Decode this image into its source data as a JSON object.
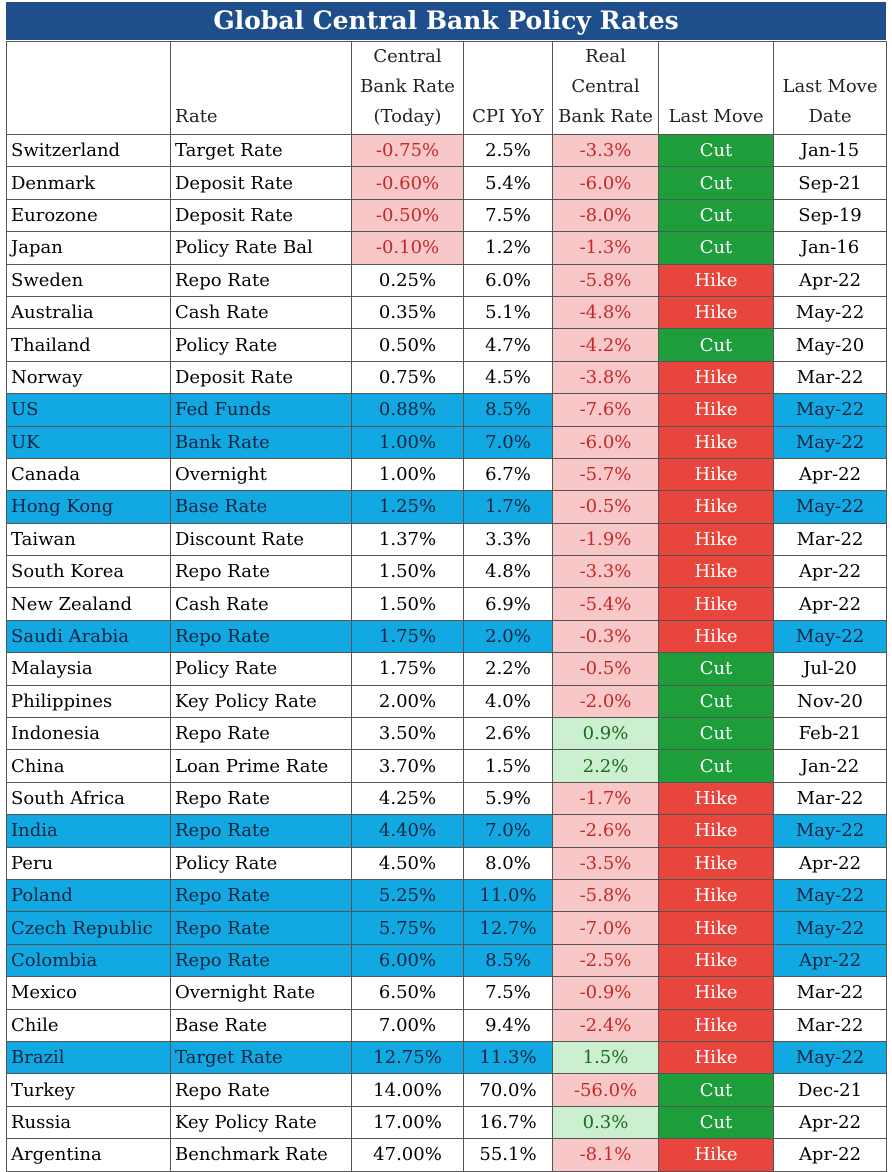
{
  "title": "Global Central Bank Policy Rates",
  "headers": {
    "country": "",
    "rate": "Rate",
    "cb_rate": [
      "Central",
      "Bank Rate",
      "(Today)"
    ],
    "cpi": "CPI YoY",
    "real": [
      "Real",
      "Central",
      "Bank Rate"
    ],
    "last_move": "Last Move",
    "last_move_date": [
      "Last Move",
      "Date"
    ]
  },
  "colors": {
    "title_bg": "#1f4e8c",
    "highlight_row": "#12a9e3",
    "negative_cell": "#f8c8c8",
    "positive_cell": "#ccefcf",
    "cut": "#1e9e3a",
    "hike": "#e8453c"
  },
  "rows": [
    {
      "country": "Switzerland",
      "rate": "Target Rate",
      "cb": "-0.75%",
      "cpi": "2.5%",
      "real": "-3.3%",
      "move": "Cut",
      "date": "Jan-15",
      "hl": false
    },
    {
      "country": "Denmark",
      "rate": "Deposit Rate",
      "cb": "-0.60%",
      "cpi": "5.4%",
      "real": "-6.0%",
      "move": "Cut",
      "date": "Sep-21",
      "hl": false
    },
    {
      "country": "Eurozone",
      "rate": "Deposit Rate",
      "cb": "-0.50%",
      "cpi": "7.5%",
      "real": "-8.0%",
      "move": "Cut",
      "date": "Sep-19",
      "hl": false
    },
    {
      "country": "Japan",
      "rate": "Policy Rate Bal",
      "cb": "-0.10%",
      "cpi": "1.2%",
      "real": "-1.3%",
      "move": "Cut",
      "date": "Jan-16",
      "hl": false
    },
    {
      "country": "Sweden",
      "rate": "Repo Rate",
      "cb": "0.25%",
      "cpi": "6.0%",
      "real": "-5.8%",
      "move": "Hike",
      "date": "Apr-22",
      "hl": false
    },
    {
      "country": "Australia",
      "rate": "Cash Rate",
      "cb": "0.35%",
      "cpi": "5.1%",
      "real": "-4.8%",
      "move": "Hike",
      "date": "May-22",
      "hl": false
    },
    {
      "country": "Thailand",
      "rate": "Policy Rate",
      "cb": "0.50%",
      "cpi": "4.7%",
      "real": "-4.2%",
      "move": "Cut",
      "date": "May-20",
      "hl": false
    },
    {
      "country": "Norway",
      "rate": "Deposit Rate",
      "cb": "0.75%",
      "cpi": "4.5%",
      "real": "-3.8%",
      "move": "Hike",
      "date": "Mar-22",
      "hl": false
    },
    {
      "country": "US",
      "rate": "Fed Funds",
      "cb": "0.88%",
      "cpi": "8.5%",
      "real": "-7.6%",
      "move": "Hike",
      "date": "May-22",
      "hl": true
    },
    {
      "country": "UK",
      "rate": "Bank Rate",
      "cb": "1.00%",
      "cpi": "7.0%",
      "real": "-6.0%",
      "move": "Hike",
      "date": "May-22",
      "hl": true
    },
    {
      "country": "Canada",
      "rate": "Overnight",
      "cb": "1.00%",
      "cpi": "6.7%",
      "real": "-5.7%",
      "move": "Hike",
      "date": "Apr-22",
      "hl": false
    },
    {
      "country": "Hong Kong",
      "rate": "Base Rate",
      "cb": "1.25%",
      "cpi": "1.7%",
      "real": "-0.5%",
      "move": "Hike",
      "date": "May-22",
      "hl": true
    },
    {
      "country": "Taiwan",
      "rate": "Discount Rate",
      "cb": "1.37%",
      "cpi": "3.3%",
      "real": "-1.9%",
      "move": "Hike",
      "date": "Mar-22",
      "hl": false
    },
    {
      "country": "South Korea",
      "rate": "Repo Rate",
      "cb": "1.50%",
      "cpi": "4.8%",
      "real": "-3.3%",
      "move": "Hike",
      "date": "Apr-22",
      "hl": false
    },
    {
      "country": "New Zealand",
      "rate": "Cash Rate",
      "cb": "1.50%",
      "cpi": "6.9%",
      "real": "-5.4%",
      "move": "Hike",
      "date": "Apr-22",
      "hl": false
    },
    {
      "country": "Saudi Arabia",
      "rate": "Repo Rate",
      "cb": "1.75%",
      "cpi": "2.0%",
      "real": "-0.3%",
      "move": "Hike",
      "date": "May-22",
      "hl": true
    },
    {
      "country": "Malaysia",
      "rate": "Policy Rate",
      "cb": "1.75%",
      "cpi": "2.2%",
      "real": "-0.5%",
      "move": "Cut",
      "date": "Jul-20",
      "hl": false
    },
    {
      "country": "Philippines",
      "rate": "Key Policy Rate",
      "cb": "2.00%",
      "cpi": "4.0%",
      "real": "-2.0%",
      "move": "Cut",
      "date": "Nov-20",
      "hl": false
    },
    {
      "country": "Indonesia",
      "rate": "Repo Rate",
      "cb": "3.50%",
      "cpi": "2.6%",
      "real": "0.9%",
      "move": "Cut",
      "date": "Feb-21",
      "hl": false
    },
    {
      "country": "China",
      "rate": "Loan Prime Rate",
      "cb": "3.70%",
      "cpi": "1.5%",
      "real": "2.2%",
      "move": "Cut",
      "date": "Jan-22",
      "hl": false
    },
    {
      "country": "South Africa",
      "rate": "Repo Rate",
      "cb": "4.25%",
      "cpi": "5.9%",
      "real": "-1.7%",
      "move": "Hike",
      "date": "Mar-22",
      "hl": false
    },
    {
      "country": "India",
      "rate": "Repo Rate",
      "cb": "4.40%",
      "cpi": "7.0%",
      "real": "-2.6%",
      "move": "Hike",
      "date": "May-22",
      "hl": true
    },
    {
      "country": "Peru",
      "rate": "Policy Rate",
      "cb": "4.50%",
      "cpi": "8.0%",
      "real": "-3.5%",
      "move": "Hike",
      "date": "Apr-22",
      "hl": false
    },
    {
      "country": "Poland",
      "rate": "Repo Rate",
      "cb": "5.25%",
      "cpi": "11.0%",
      "real": "-5.8%",
      "move": "Hike",
      "date": "May-22",
      "hl": true
    },
    {
      "country": "Czech Republic",
      "rate": "Repo Rate",
      "cb": "5.75%",
      "cpi": "12.7%",
      "real": "-7.0%",
      "move": "Hike",
      "date": "May-22",
      "hl": true
    },
    {
      "country": "Colombia",
      "rate": "Repo Rate",
      "cb": "6.00%",
      "cpi": "8.5%",
      "real": "-2.5%",
      "move": "Hike",
      "date": "Apr-22",
      "hl": true
    },
    {
      "country": "Mexico",
      "rate": "Overnight Rate",
      "cb": "6.50%",
      "cpi": "7.5%",
      "real": "-0.9%",
      "move": "Hike",
      "date": "Mar-22",
      "hl": false
    },
    {
      "country": "Chile",
      "rate": "Base Rate",
      "cb": "7.00%",
      "cpi": "9.4%",
      "real": "-2.4%",
      "move": "Hike",
      "date": "Mar-22",
      "hl": false
    },
    {
      "country": "Brazil",
      "rate": "Target Rate",
      "cb": "12.75%",
      "cpi": "11.3%",
      "real": "1.5%",
      "move": "Hike",
      "date": "May-22",
      "hl": true
    },
    {
      "country": "Turkey",
      "rate": "Repo Rate",
      "cb": "14.00%",
      "cpi": "70.0%",
      "real": "-56.0%",
      "move": "Cut",
      "date": "Dec-21",
      "hl": false
    },
    {
      "country": "Russia",
      "rate": "Key Policy Rate",
      "cb": "17.00%",
      "cpi": "16.7%",
      "real": "0.3%",
      "move": "Cut",
      "date": "Apr-22",
      "hl": false
    },
    {
      "country": "Argentina",
      "rate": "Benchmark Rate",
      "cb": "47.00%",
      "cpi": "55.1%",
      "real": "-8.1%",
      "move": "Hike",
      "date": "Apr-22",
      "hl": false
    }
  ]
}
